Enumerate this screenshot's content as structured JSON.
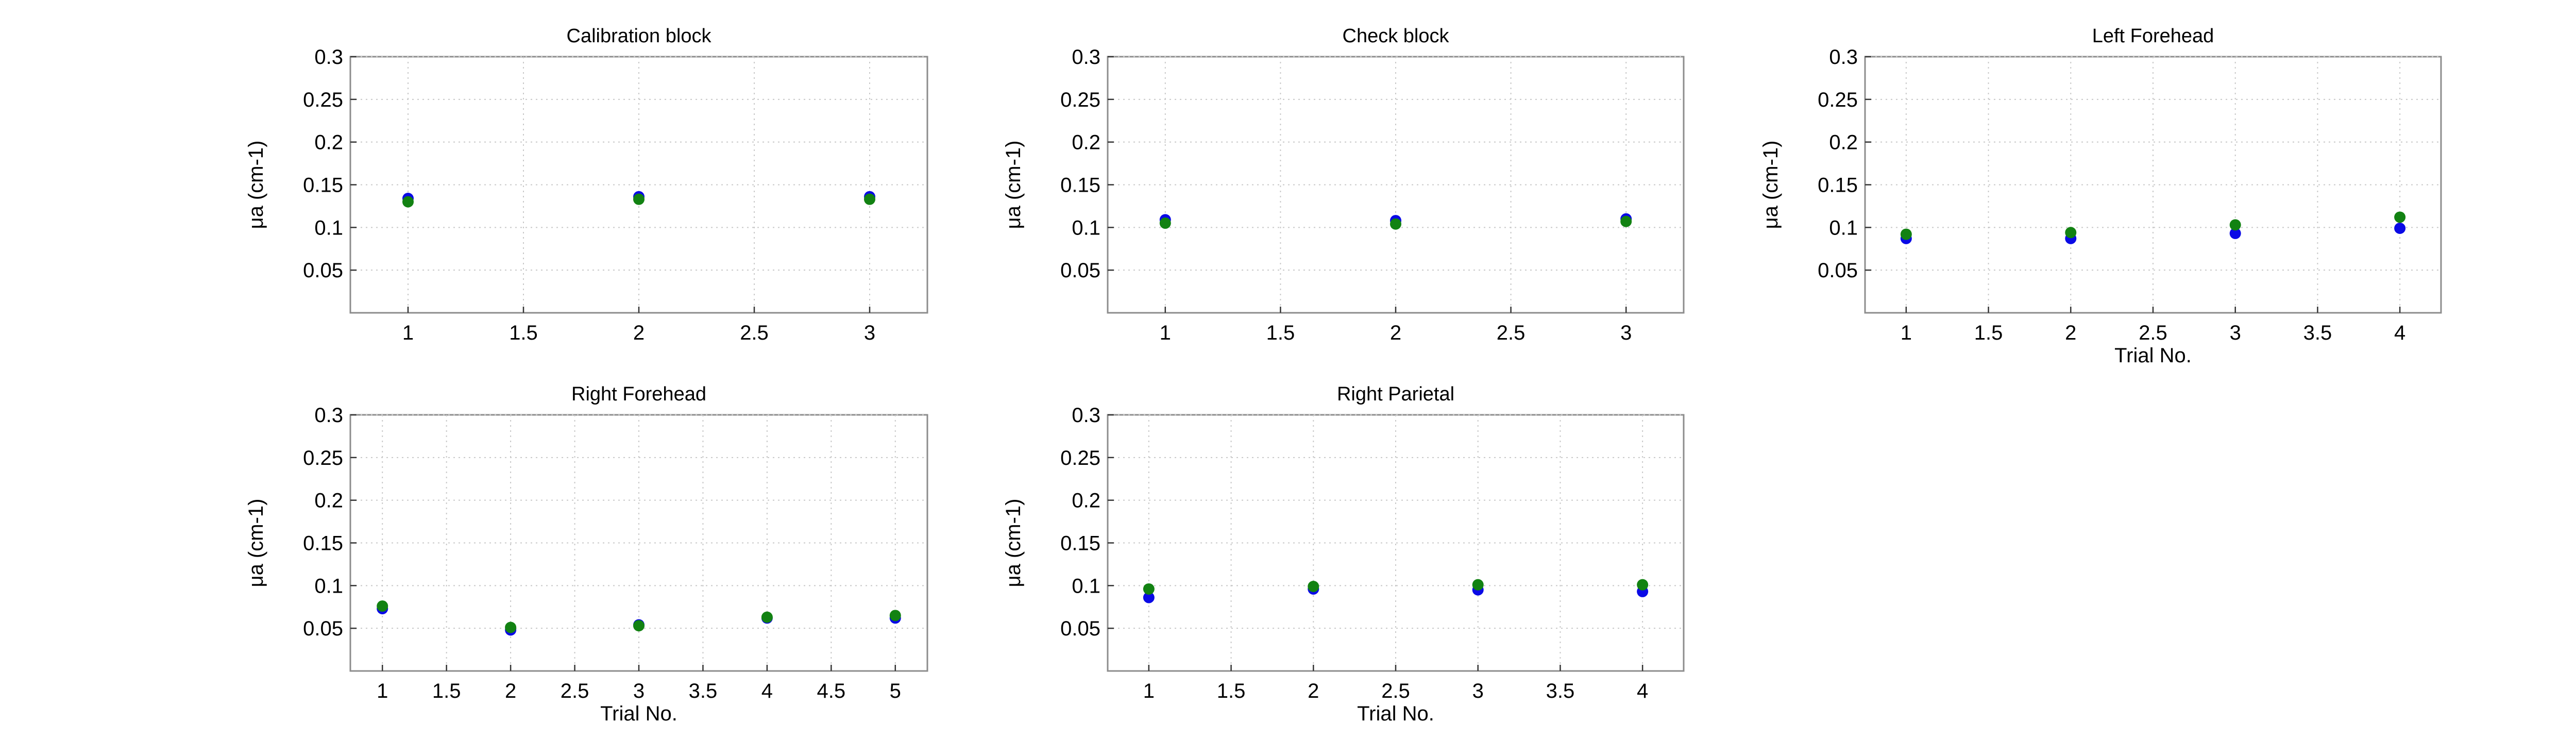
{
  "colors": {
    "series1": "#0a0ae6",
    "series2": "#128212"
  },
  "chart_data": [
    {
      "type": "scatter",
      "title": "Calibration block",
      "ylabel": "μa (cm-1)",
      "xlabel": "",
      "xlim": [
        0.75,
        3.25
      ],
      "ylim": [
        0,
        0.3
      ],
      "xticks": [
        1,
        1.5,
        2,
        2.5,
        3
      ],
      "yticks": [
        0.05,
        0.1,
        0.15,
        0.2,
        0.25,
        0.3
      ],
      "grid": true,
      "series": [
        {
          "color": "#0a0ae6",
          "x": [
            1,
            2,
            3
          ],
          "y": [
            0.134,
            0.136,
            0.136
          ]
        },
        {
          "color": "#128212",
          "x": [
            1,
            2,
            3
          ],
          "y": [
            0.13,
            0.133,
            0.133
          ]
        }
      ]
    },
    {
      "type": "scatter",
      "title": "Check block",
      "ylabel": "μa (cm-1)",
      "xlabel": "",
      "xlim": [
        0.75,
        3.25
      ],
      "ylim": [
        0,
        0.3
      ],
      "xticks": [
        1,
        1.5,
        2,
        2.5,
        3
      ],
      "yticks": [
        0.05,
        0.1,
        0.15,
        0.2,
        0.25,
        0.3
      ],
      "grid": true,
      "series": [
        {
          "color": "#0a0ae6",
          "x": [
            1,
            2,
            3
          ],
          "y": [
            0.109,
            0.108,
            0.11
          ]
        },
        {
          "color": "#128212",
          "x": [
            1,
            2,
            3
          ],
          "y": [
            0.105,
            0.104,
            0.107
          ]
        }
      ]
    },
    {
      "type": "scatter",
      "title": "Left Forehead",
      "ylabel": "μa (cm-1)",
      "xlabel": "Trial No.",
      "xlim": [
        0.75,
        4.25
      ],
      "ylim": [
        0,
        0.3
      ],
      "xticks": [
        1,
        1.5,
        2,
        2.5,
        3,
        3.5,
        4
      ],
      "yticks": [
        0.05,
        0.1,
        0.15,
        0.2,
        0.25,
        0.3
      ],
      "grid": true,
      "series": [
        {
          "color": "#0a0ae6",
          "x": [
            1,
            2,
            3,
            4
          ],
          "y": [
            0.087,
            0.087,
            0.093,
            0.099
          ]
        },
        {
          "color": "#128212",
          "x": [
            1,
            2,
            3,
            4
          ],
          "y": [
            0.092,
            0.094,
            0.103,
            0.112
          ]
        }
      ]
    },
    {
      "type": "scatter",
      "title": "Right Forehead",
      "ylabel": "μa (cm-1)",
      "xlabel": "Trial No.",
      "xlim": [
        0.75,
        5.25
      ],
      "ylim": [
        0,
        0.3
      ],
      "xticks": [
        1,
        1.5,
        2,
        2.5,
        3,
        3.5,
        4,
        4.5,
        5
      ],
      "yticks": [
        0.05,
        0.1,
        0.15,
        0.2,
        0.25,
        0.3
      ],
      "grid": true,
      "series": [
        {
          "color": "#0a0ae6",
          "x": [
            1,
            2,
            3,
            4,
            5
          ],
          "y": [
            0.073,
            0.048,
            0.054,
            0.062,
            0.062
          ]
        },
        {
          "color": "#128212",
          "x": [
            1,
            2,
            3,
            4,
            5
          ],
          "y": [
            0.076,
            0.051,
            0.053,
            0.063,
            0.065
          ]
        }
      ]
    },
    {
      "type": "scatter",
      "title": "Right Parietal",
      "ylabel": "μa (cm-1)",
      "xlabel": "Trial No.",
      "xlim": [
        0.75,
        4.25
      ],
      "ylim": [
        0,
        0.3
      ],
      "xticks": [
        1,
        1.5,
        2,
        2.5,
        3,
        3.5,
        4
      ],
      "yticks": [
        0.05,
        0.1,
        0.15,
        0.2,
        0.25,
        0.3
      ],
      "grid": true,
      "series": [
        {
          "color": "#0a0ae6",
          "x": [
            1,
            2,
            3,
            4
          ],
          "y": [
            0.086,
            0.096,
            0.095,
            0.093
          ]
        },
        {
          "color": "#128212",
          "x": [
            1,
            2,
            3,
            4
          ],
          "y": [
            0.096,
            0.099,
            0.101,
            0.101
          ]
        }
      ]
    }
  ]
}
